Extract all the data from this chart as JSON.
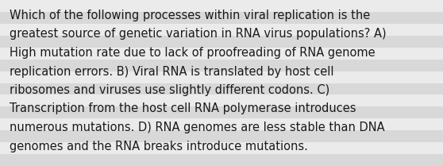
{
  "lines": [
    "Which of the following processes within viral replication is the",
    "greatest source of genetic variation in RNA virus populations? A)",
    "High mutation rate due to lack of proofreading of RNA genome",
    "replication errors. B) Viral RNA is translated by host cell",
    "ribosomes and viruses use slightly different codons. C)",
    "Transcription from the host cell RNA polymerase introduces",
    "numerous mutations. D) RNA genomes are less stable than DNA",
    "genomes and the RNA breaks introduce mutations."
  ],
  "bg_color": "#e8e8e8",
  "stripe_color_light": "#ebebeb",
  "stripe_color_dark": "#d8d8d8",
  "text_color": "#1a1a1a",
  "font_size": 10.5,
  "fig_width": 5.58,
  "fig_height": 2.09,
  "dpi": 100
}
